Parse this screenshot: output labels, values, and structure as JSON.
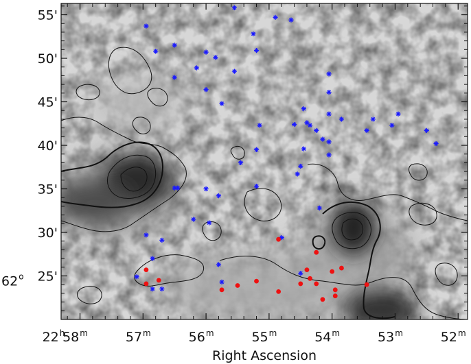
{
  "chart_data": {
    "type": "scatter",
    "title": "",
    "xlabel": "Right Ascension",
    "ylabel": "",
    "x_axis": {
      "unit": "minutes of RA (22h)",
      "range": [
        51.85,
        58.3
      ],
      "inverted": true,
      "ticks": [
        {
          "value": 58.3,
          "text": "22",
          "sup": "h"
        },
        {
          "value": 58,
          "text": "58",
          "sup": "m"
        },
        {
          "value": 57,
          "text": "57",
          "sup": "m"
        },
        {
          "value": 56,
          "text": "56",
          "sup": "m"
        },
        {
          "value": 55,
          "text": "55",
          "sup": "m"
        },
        {
          "value": 54,
          "text": "54",
          "sup": "m"
        },
        {
          "value": 53,
          "text": "53",
          "sup": "m"
        },
        {
          "value": 52,
          "text": "52",
          "sup": "m"
        }
      ]
    },
    "y_axis": {
      "unit": "arcminutes above 62°",
      "range": [
        20,
        56.3
      ],
      "ticks": [
        {
          "value": 25,
          "text": "62",
          "sup": "o",
          "extra": "25'"
        },
        {
          "value": 30,
          "text": "30'"
        },
        {
          "value": 35,
          "text": "35'"
        },
        {
          "value": 40,
          "text": "40'"
        },
        {
          "value": 45,
          "text": "45'"
        },
        {
          "value": 50,
          "text": "50'"
        },
        {
          "value": 55,
          "text": "55'"
        }
      ]
    },
    "background": "greyscale column-density map with contours",
    "series": [
      {
        "marker": "asterisk",
        "color": "#1a1aff",
        "points": [
          [
            55.55,
            55.8
          ],
          [
            54.9,
            54.7
          ],
          [
            54.65,
            54.4
          ],
          [
            55.25,
            52.8
          ],
          [
            56.95,
            53.7
          ],
          [
            56.5,
            51.5
          ],
          [
            55.2,
            50.9
          ],
          [
            56.8,
            50.8
          ],
          [
            56.0,
            50.7
          ],
          [
            55.85,
            50.1
          ],
          [
            56.15,
            48.9
          ],
          [
            55.55,
            48.5
          ],
          [
            54.05,
            48.2
          ],
          [
            56.5,
            47.8
          ],
          [
            56.0,
            46.4
          ],
          [
            54.05,
            46.1
          ],
          [
            55.75,
            44.8
          ],
          [
            54.45,
            44.2
          ],
          [
            54.05,
            43.6
          ],
          [
            53.85,
            43.0
          ],
          [
            53.35,
            43.0
          ],
          [
            52.95,
            43.6
          ],
          [
            54.4,
            42.6
          ],
          [
            54.35,
            42.3
          ],
          [
            54.6,
            42.4
          ],
          [
            55.15,
            42.3
          ],
          [
            53.45,
            41.7
          ],
          [
            53.05,
            42.3
          ],
          [
            54.25,
            41.7
          ],
          [
            52.5,
            41.7
          ],
          [
            54.15,
            40.7
          ],
          [
            54.05,
            40.4
          ],
          [
            54.45,
            39.6
          ],
          [
            55.2,
            39.5
          ],
          [
            54.05,
            38.9
          ],
          [
            52.35,
            40.2
          ],
          [
            55.45,
            38.0
          ],
          [
            54.5,
            37.6
          ],
          [
            54.55,
            36.7
          ],
          [
            56.45,
            35.1
          ],
          [
            56.5,
            35.1
          ],
          [
            56.0,
            35.0
          ],
          [
            55.2,
            35.3
          ],
          [
            55.8,
            34.2
          ],
          [
            54.2,
            32.8
          ],
          [
            56.2,
            31.5
          ],
          [
            55.95,
            31.1
          ],
          [
            56.95,
            29.7
          ],
          [
            56.7,
            29.1
          ],
          [
            54.8,
            29.4
          ],
          [
            56.85,
            27.0
          ],
          [
            55.8,
            26.3
          ],
          [
            54.5,
            25.3
          ],
          [
            57.1,
            24.9
          ],
          [
            55.75,
            24.3
          ],
          [
            56.85,
            23.5
          ],
          [
            56.7,
            23.5
          ]
        ]
      },
      {
        "marker": "dot",
        "color": "#ee1111",
        "points": [
          [
            54.85,
            29.2
          ],
          [
            54.25,
            27.7
          ],
          [
            56.95,
            25.7
          ],
          [
            56.75,
            24.5
          ],
          [
            55.2,
            24.4
          ],
          [
            54.35,
            24.7
          ],
          [
            53.85,
            25.9
          ],
          [
            54.0,
            25.5
          ],
          [
            53.45,
            24.0
          ],
          [
            54.25,
            24.1
          ],
          [
            54.5,
            24.1
          ],
          [
            54.4,
            25.7
          ],
          [
            55.5,
            23.9
          ],
          [
            56.95,
            24.1
          ],
          [
            55.75,
            23.4
          ],
          [
            54.85,
            23.2
          ],
          [
            53.95,
            23.4
          ],
          [
            53.95,
            22.7
          ],
          [
            54.15,
            22.3
          ]
        ]
      }
    ]
  }
}
